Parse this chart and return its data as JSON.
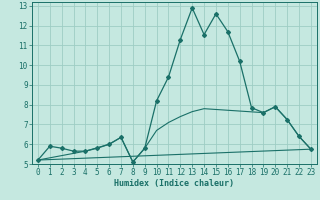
{
  "title": "",
  "xlabel": "Humidex (Indice chaleur)",
  "bg_color": "#c5e8e0",
  "grid_color": "#9ecdc4",
  "line_color": "#1a7068",
  "xlim": [
    -0.5,
    23.5
  ],
  "ylim": [
    5,
    13.2
  ],
  "yticks": [
    5,
    6,
    7,
    8,
    9,
    10,
    11,
    12,
    13
  ],
  "xticks": [
    0,
    1,
    2,
    3,
    4,
    5,
    6,
    7,
    8,
    9,
    10,
    11,
    12,
    13,
    14,
    15,
    16,
    17,
    18,
    19,
    20,
    21,
    22,
    23
  ],
  "series1_x": [
    0,
    1,
    2,
    3,
    4,
    5,
    6,
    7,
    8,
    9,
    10,
    11,
    12,
    13,
    14,
    15,
    16,
    17,
    18,
    19,
    20,
    21,
    22,
    23
  ],
  "series1_y": [
    5.2,
    5.9,
    5.8,
    5.65,
    5.65,
    5.8,
    6.0,
    6.35,
    5.1,
    5.8,
    8.2,
    9.4,
    11.3,
    12.9,
    11.55,
    12.6,
    11.7,
    10.2,
    7.85,
    7.6,
    7.9,
    7.25,
    6.4,
    5.75
  ],
  "series2_x": [
    0,
    4,
    6,
    7,
    8,
    9,
    10,
    11,
    12,
    13,
    14,
    19,
    20,
    21,
    22,
    23
  ],
  "series2_y": [
    5.2,
    5.65,
    6.0,
    6.35,
    5.1,
    5.8,
    6.7,
    7.1,
    7.4,
    7.65,
    7.8,
    7.6,
    7.9,
    7.25,
    6.4,
    5.75
  ],
  "series3_x": [
    0,
    23
  ],
  "series3_y": [
    5.2,
    5.75
  ]
}
